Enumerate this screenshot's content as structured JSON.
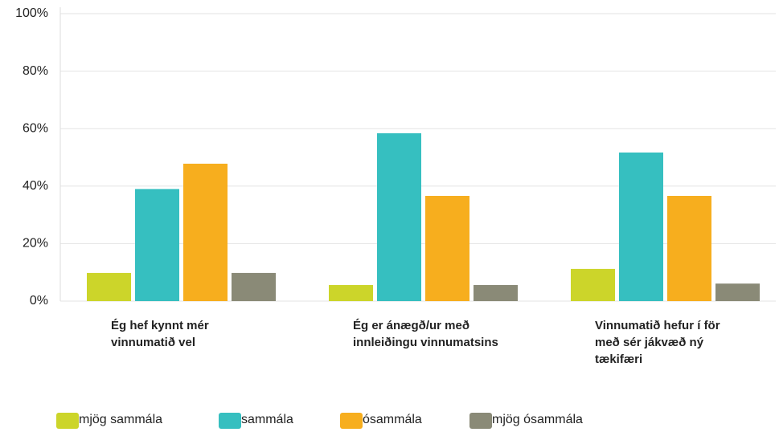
{
  "chart_data": {
    "type": "bar",
    "categories": [
      "Ég hef kynnt mér vinnumatið vel",
      "Ég er ánægð/ur með innleiðingu vinnumatsins",
      "Vinnumatið hefur í för með sér jákvæð ný tækifæri"
    ],
    "series": [
      {
        "name": "mjög sammála",
        "color": "#ccd52a",
        "values": [
          9.8,
          5.6,
          11.2
        ]
      },
      {
        "name": "sammála",
        "color": "#36bfc0",
        "values": [
          39,
          58.4,
          51.7
        ]
      },
      {
        "name": "ósammála",
        "color": "#f7ae1e",
        "values": [
          47.8,
          36.6,
          36.6
        ]
      },
      {
        "name": "mjög ósammála",
        "color": "#8a8a77",
        "values": [
          9.8,
          5.6,
          6.1
        ]
      }
    ],
    "ylim": [
      0,
      100
    ],
    "yticks": [
      {
        "value": 0,
        "label": "0%"
      },
      {
        "value": 20,
        "label": "20%"
      },
      {
        "value": 40,
        "label": "40%"
      },
      {
        "value": 60,
        "label": "60%"
      },
      {
        "value": 80,
        "label": "80%"
      },
      {
        "value": 100,
        "label": "100%"
      }
    ],
    "grid": true,
    "legend": "bottom"
  }
}
